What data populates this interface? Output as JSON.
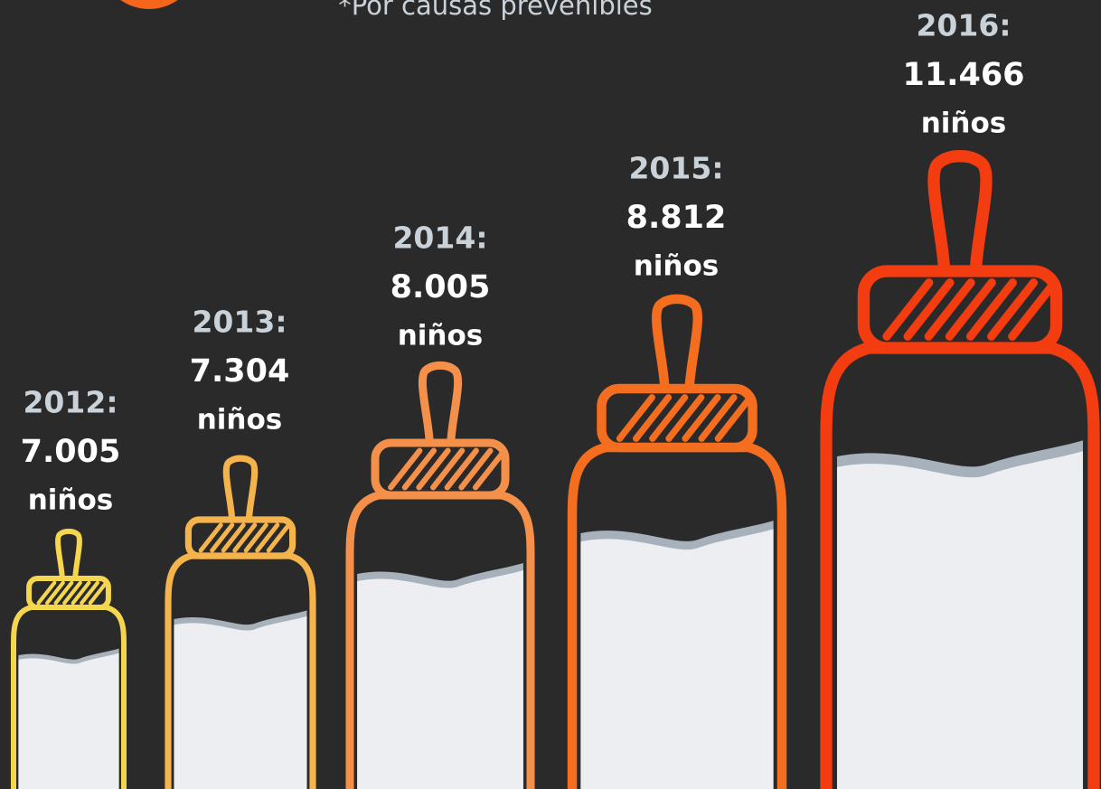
{
  "subtitle": "*Por causas prevenibles",
  "items": [
    {
      "year": "2012:",
      "count": "7.005",
      "unit": "niños"
    },
    {
      "year": "2013:",
      "count": "7.304",
      "unit": "niños"
    },
    {
      "year": "2014:",
      "count": "8.005",
      "unit": "niños"
    },
    {
      "year": "2015:",
      "count": "8.812",
      "unit": "niños"
    },
    {
      "year": "2016:",
      "count": "11.466",
      "unit": "niños"
    }
  ]
}
